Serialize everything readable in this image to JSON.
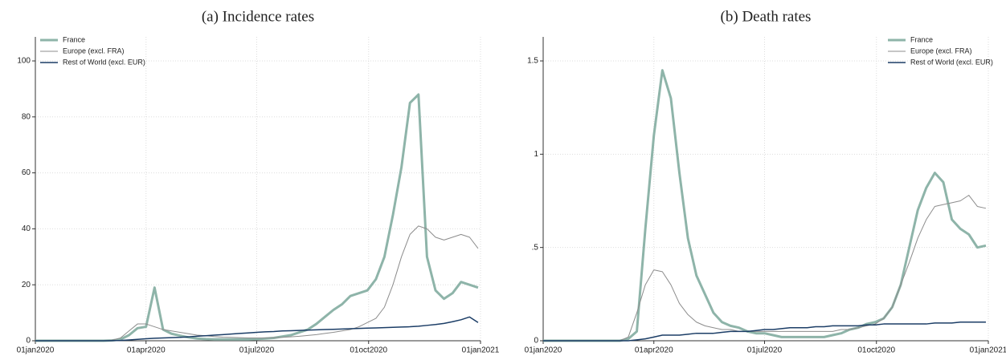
{
  "chart_data": [
    {
      "type": "line",
      "title": "(a) Incidence rates",
      "x": [
        "2020-01-01",
        "2020-01-08",
        "2020-01-15",
        "2020-01-22",
        "2020-01-29",
        "2020-02-05",
        "2020-02-12",
        "2020-02-19",
        "2020-02-26",
        "2020-03-04",
        "2020-03-11",
        "2020-03-18",
        "2020-03-25",
        "2020-04-01",
        "2020-04-08",
        "2020-04-15",
        "2020-04-22",
        "2020-04-29",
        "2020-05-06",
        "2020-05-13",
        "2020-05-20",
        "2020-05-27",
        "2020-06-03",
        "2020-06-10",
        "2020-06-17",
        "2020-06-24",
        "2020-07-01",
        "2020-07-08",
        "2020-07-15",
        "2020-07-22",
        "2020-07-29",
        "2020-08-05",
        "2020-08-12",
        "2020-08-19",
        "2020-08-26",
        "2020-09-02",
        "2020-09-09",
        "2020-09-16",
        "2020-09-23",
        "2020-09-30",
        "2020-10-07",
        "2020-10-14",
        "2020-10-21",
        "2020-10-28",
        "2020-11-04",
        "2020-11-11",
        "2020-11-18",
        "2020-11-25",
        "2020-12-02",
        "2020-12-09",
        "2020-12-16",
        "2020-12-23",
        "2020-12-30"
      ],
      "series": [
        {
          "name": "France",
          "color": "#8eb4a9",
          "width": 3,
          "values": [
            0,
            0,
            0,
            0,
            0,
            0,
            0,
            0,
            0,
            0.1,
            0.5,
            2,
            4.5,
            5,
            19,
            4,
            2.5,
            1.8,
            1.2,
            0.8,
            0.6,
            0.5,
            0.5,
            0.5,
            0.5,
            0.5,
            0.6,
            0.8,
            1,
            1.5,
            2,
            3,
            4,
            6,
            8.5,
            11,
            13,
            16,
            17,
            18,
            22,
            30,
            45,
            62,
            85,
            88,
            30,
            18,
            15,
            17,
            21,
            20,
            19
          ]
        },
        {
          "name": "Europe (excl. FRA)",
          "color": "#8c8c8c",
          "width": 1,
          "values": [
            0,
            0,
            0,
            0,
            0,
            0,
            0,
            0,
            0,
            0.2,
            1,
            3.5,
            6,
            6,
            5,
            4,
            3.5,
            3,
            2.5,
            2,
            1.8,
            1.5,
            1.3,
            1.2,
            1.1,
            1,
            1,
            1,
            1.1,
            1.2,
            1.4,
            1.6,
            1.9,
            2.2,
            2.6,
            3,
            3.5,
            4,
            5,
            6.5,
            8,
            12,
            20,
            30,
            38,
            41,
            40,
            37,
            36,
            37,
            38,
            37,
            33
          ]
        },
        {
          "name": "Rest of World (excl. EUR)",
          "color": "#1b3d66",
          "width": 1.5,
          "values": [
            0,
            0,
            0,
            0,
            0,
            0,
            0,
            0,
            0,
            0.05,
            0.1,
            0.3,
            0.5,
            0.7,
            0.9,
            1,
            1.1,
            1.2,
            1.4,
            1.6,
            1.8,
            2,
            2.2,
            2.4,
            2.6,
            2.8,
            3,
            3.2,
            3.3,
            3.5,
            3.6,
            3.7,
            3.8,
            3.9,
            4,
            4.1,
            4.2,
            4.3,
            4.4,
            4.5,
            4.6,
            4.7,
            4.8,
            4.9,
            5,
            5.2,
            5.5,
            5.8,
            6.2,
            6.8,
            7.5,
            8.5,
            6.5
          ]
        }
      ],
      "xlim": [
        "2020-01-01",
        "2021-01-01"
      ],
      "xticks": [
        {
          "value": "2020-01-01",
          "label": "01jan2020"
        },
        {
          "value": "2020-04-01",
          "label": "01apr2020"
        },
        {
          "value": "2020-07-01",
          "label": "01jul2020"
        },
        {
          "value": "2020-10-01",
          "label": "01oct2020"
        },
        {
          "value": "2021-01-01",
          "label": "01jan2021"
        }
      ],
      "ylim": [
        0,
        100
      ],
      "yticks": [
        0,
        20,
        40,
        60,
        80,
        100
      ],
      "grid": true,
      "legend": "upper left"
    },
    {
      "type": "line",
      "title": "(b) Death rates",
      "x": [
        "2020-01-01",
        "2020-01-08",
        "2020-01-15",
        "2020-01-22",
        "2020-01-29",
        "2020-02-05",
        "2020-02-12",
        "2020-02-19",
        "2020-02-26",
        "2020-03-04",
        "2020-03-11",
        "2020-03-18",
        "2020-03-25",
        "2020-04-01",
        "2020-04-08",
        "2020-04-15",
        "2020-04-22",
        "2020-04-29",
        "2020-05-06",
        "2020-05-13",
        "2020-05-20",
        "2020-05-27",
        "2020-06-03",
        "2020-06-10",
        "2020-06-17",
        "2020-06-24",
        "2020-07-01",
        "2020-07-08",
        "2020-07-15",
        "2020-07-22",
        "2020-07-29",
        "2020-08-05",
        "2020-08-12",
        "2020-08-19",
        "2020-08-26",
        "2020-09-02",
        "2020-09-09",
        "2020-09-16",
        "2020-09-23",
        "2020-09-30",
        "2020-10-07",
        "2020-10-14",
        "2020-10-21",
        "2020-10-28",
        "2020-11-04",
        "2020-11-11",
        "2020-11-18",
        "2020-11-25",
        "2020-12-02",
        "2020-12-09",
        "2020-12-16",
        "2020-12-23",
        "2020-12-30"
      ],
      "series": [
        {
          "name": "France",
          "color": "#8eb4a9",
          "width": 3,
          "values": [
            0,
            0,
            0,
            0,
            0,
            0,
            0,
            0,
            0,
            0,
            0.01,
            0.05,
            0.6,
            1.1,
            1.45,
            1.3,
            0.9,
            0.55,
            0.35,
            0.25,
            0.15,
            0.1,
            0.08,
            0.07,
            0.05,
            0.04,
            0.04,
            0.03,
            0.02,
            0.02,
            0.02,
            0.02,
            0.02,
            0.02,
            0.03,
            0.04,
            0.06,
            0.07,
            0.09,
            0.1,
            0.12,
            0.18,
            0.3,
            0.5,
            0.7,
            0.82,
            0.9,
            0.85,
            0.65,
            0.6,
            0.57,
            0.5,
            0.51
          ]
        },
        {
          "name": "Europe (excl. FRA)",
          "color": "#8c8c8c",
          "width": 1,
          "values": [
            0,
            0,
            0,
            0,
            0,
            0,
            0,
            0,
            0,
            0,
            0.02,
            0.15,
            0.3,
            0.38,
            0.37,
            0.3,
            0.2,
            0.14,
            0.1,
            0.08,
            0.07,
            0.06,
            0.06,
            0.05,
            0.05,
            0.05,
            0.05,
            0.05,
            0.05,
            0.05,
            0.05,
            0.05,
            0.05,
            0.05,
            0.05,
            0.06,
            0.06,
            0.07,
            0.08,
            0.09,
            0.12,
            0.18,
            0.3,
            0.42,
            0.55,
            0.65,
            0.72,
            0.73,
            0.74,
            0.75,
            0.78,
            0.72,
            0.71
          ]
        },
        {
          "name": "Rest of World (excl. EUR)",
          "color": "#1b3d66",
          "width": 1.5,
          "values": [
            0,
            0,
            0,
            0,
            0,
            0,
            0,
            0,
            0,
            0,
            0,
            0.005,
            0.01,
            0.02,
            0.03,
            0.03,
            0.03,
            0.035,
            0.04,
            0.04,
            0.04,
            0.045,
            0.05,
            0.05,
            0.05,
            0.055,
            0.06,
            0.06,
            0.065,
            0.07,
            0.07,
            0.07,
            0.075,
            0.075,
            0.08,
            0.08,
            0.08,
            0.08,
            0.085,
            0.085,
            0.09,
            0.09,
            0.09,
            0.09,
            0.09,
            0.09,
            0.095,
            0.095,
            0.095,
            0.1,
            0.1,
            0.1,
            0.1
          ]
        }
      ],
      "xlim": [
        "2020-01-01",
        "2021-01-01"
      ],
      "xticks": [
        {
          "value": "2020-01-01",
          "label": "01jan2020"
        },
        {
          "value": "2020-04-01",
          "label": "01apr2020"
        },
        {
          "value": "2020-07-01",
          "label": "01jul2020"
        },
        {
          "value": "2020-10-01",
          "label": "01oct2020"
        },
        {
          "value": "2021-01-01",
          "label": "01jan2021"
        }
      ],
      "ylim": [
        0,
        1.5
      ],
      "yticks": [
        0,
        {
          "value": 0.5,
          "label": ".5"
        },
        1,
        1.5
      ],
      "grid": true,
      "legend": "upper right"
    }
  ]
}
